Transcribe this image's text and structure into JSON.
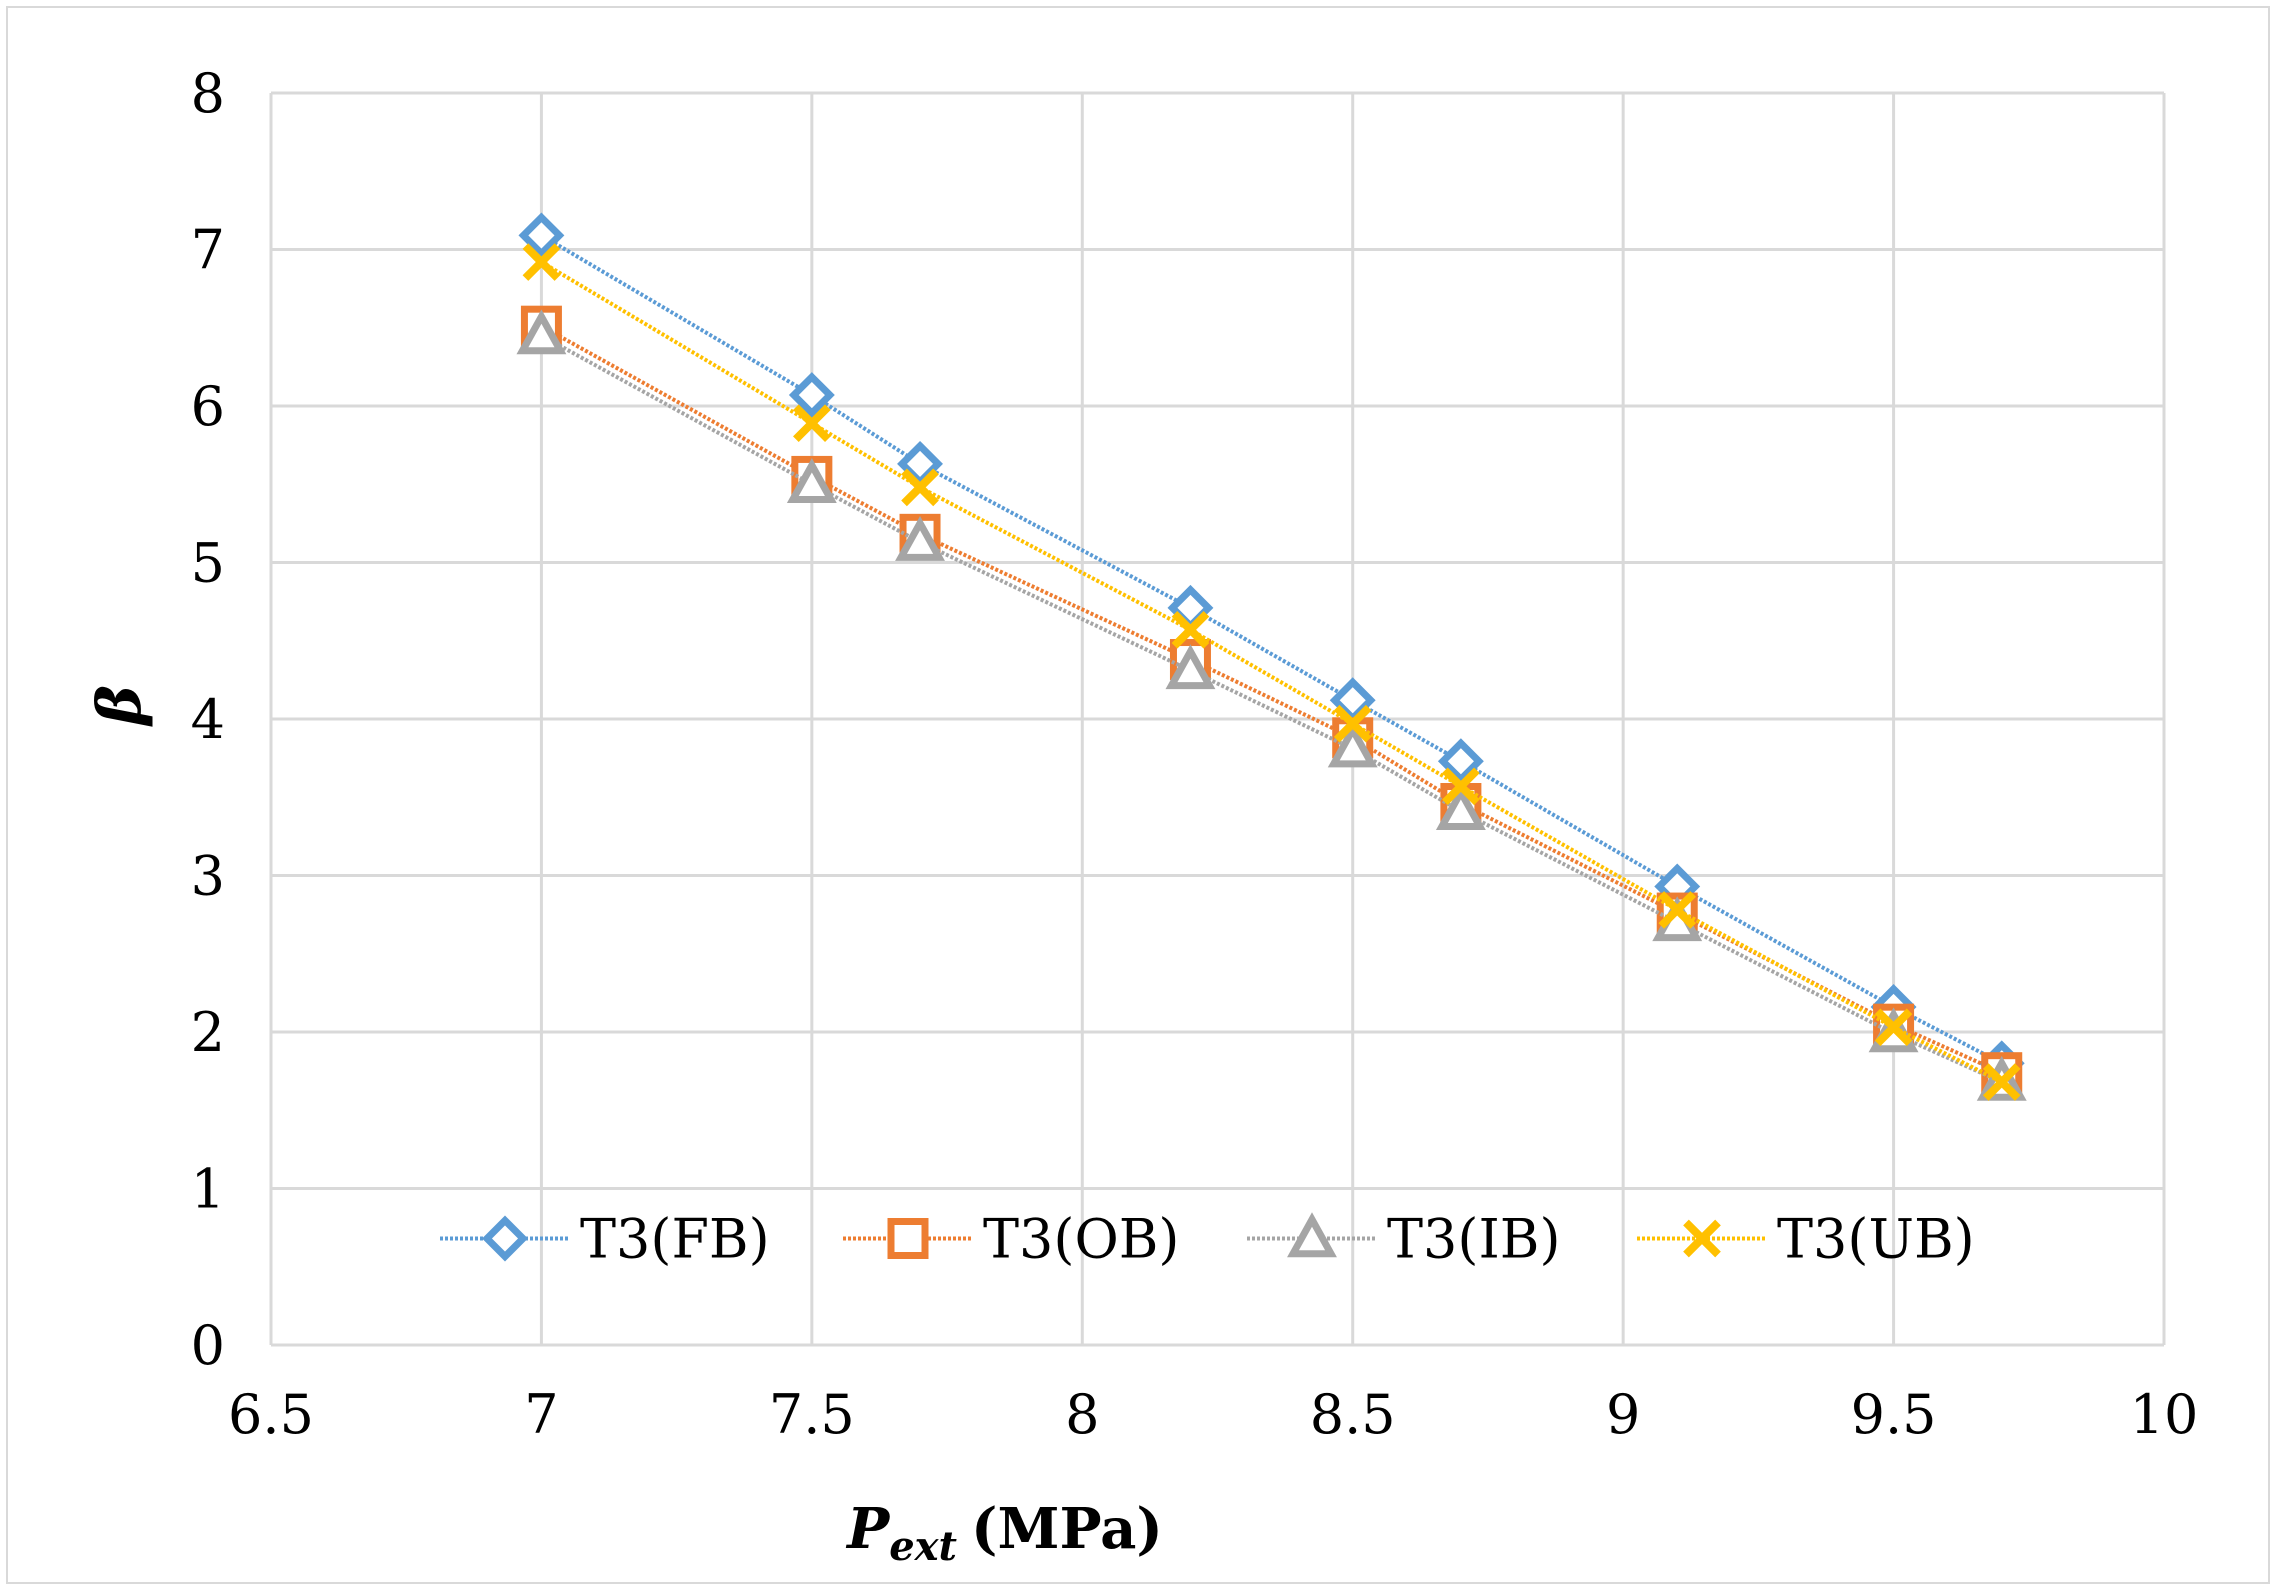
{
  "chart_data": {
    "type": "line",
    "title": "",
    "xlabel": "P",
    "xlabel_subscript": "ext",
    "xlabel_unit": "(MPa)",
    "ylabel": "β",
    "xlim": [
      6.5,
      10
    ],
    "ylim": [
      0,
      8
    ],
    "x_ticks": [
      "6.5",
      "7",
      "7.5",
      "8",
      "8.5",
      "9",
      "9.5",
      "10"
    ],
    "y_ticks": [
      "0",
      "1",
      "2",
      "3",
      "4",
      "5",
      "6",
      "7",
      "8"
    ],
    "grid": true,
    "legend_position": "bottom-center inside",
    "x": [
      7,
      7.5,
      7.7,
      8.2,
      8.5,
      8.7,
      9.1,
      9.5,
      9.7
    ],
    "series": [
      {
        "name": "T3(FB)",
        "marker": "diamond",
        "color": "#5b9bd5",
        "values": [
          7.09,
          6.07,
          5.63,
          4.71,
          4.12,
          3.73,
          2.93,
          2.16,
          1.8
        ]
      },
      {
        "name": "T3(OB)",
        "marker": "square",
        "color": "#ed7d31",
        "values": [
          6.51,
          5.55,
          5.18,
          4.38,
          3.88,
          3.46,
          2.76,
          2.05,
          1.74
        ]
      },
      {
        "name": "T3(IB)",
        "marker": "triangle",
        "color": "#a5a5a5",
        "values": [
          6.45,
          5.5,
          5.13,
          4.31,
          3.81,
          3.41,
          2.7,
          1.99,
          1.68
        ]
      },
      {
        "name": "T3(UB)",
        "marker": "x",
        "color": "#ffc000",
        "values": [
          6.92,
          5.89,
          5.48,
          4.57,
          3.97,
          3.57,
          2.78,
          2.03,
          1.68
        ]
      }
    ]
  }
}
